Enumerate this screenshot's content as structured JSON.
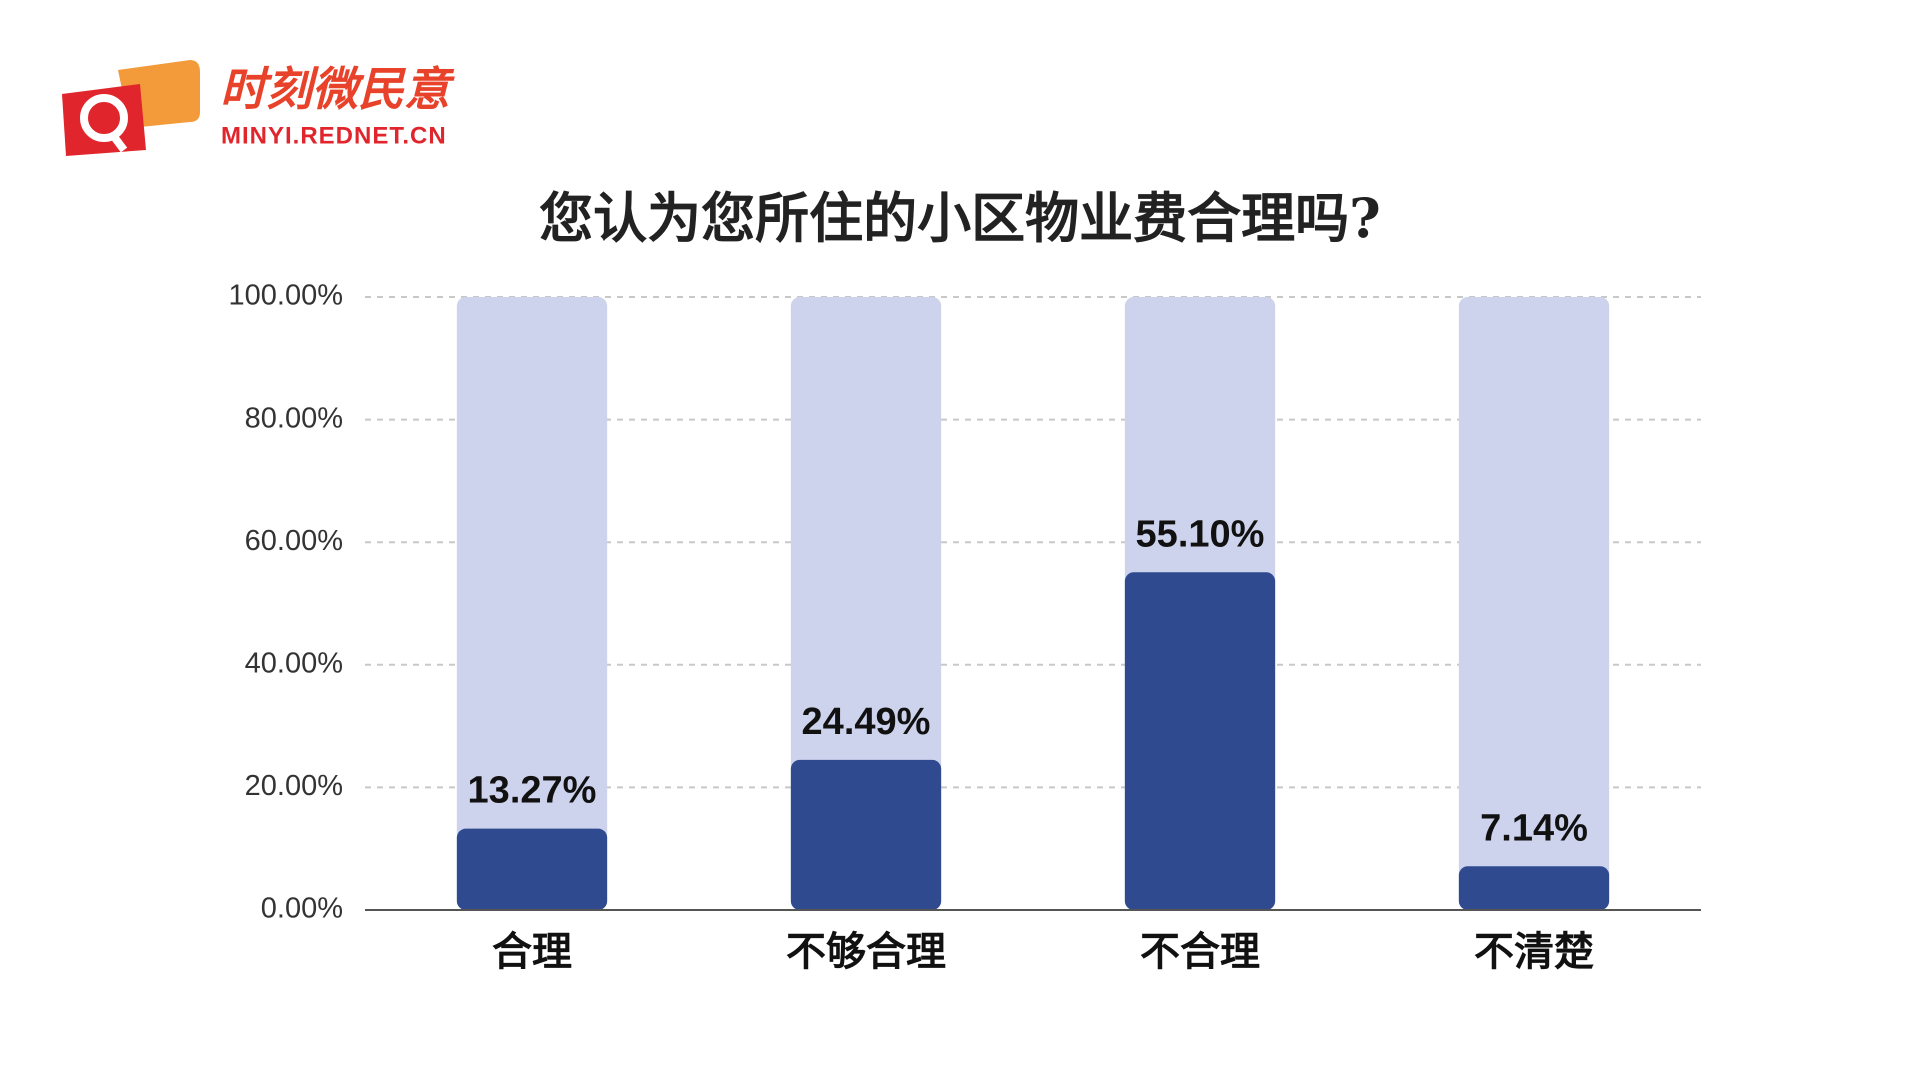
{
  "brand": {
    "name": "时刻微民意",
    "url": "MINYI.REDNET.CN"
  },
  "chart_data": {
    "type": "bar",
    "title": "您认为您所住的小区物业费合理吗?",
    "categories": [
      "合理",
      "不够合理",
      "不合理",
      "不清楚"
    ],
    "values": [
      13.27,
      24.49,
      55.1,
      7.14
    ],
    "value_labels": [
      "13.27%",
      "24.49%",
      "55.10%",
      "7.14%"
    ],
    "color": "#2f4a8f",
    "track_color": "#cdd3ec",
    "ylim": [
      0,
      100
    ],
    "yticks": [
      {
        "value": 0,
        "label": "0.00%"
      },
      {
        "value": 20,
        "label": "20.00%"
      },
      {
        "value": 40,
        "label": "40.00%"
      },
      {
        "value": 60,
        "label": "60.00%"
      },
      {
        "value": 80,
        "label": "80.00%"
      },
      {
        "value": 100,
        "label": "100.00%"
      }
    ],
    "grid": true
  }
}
